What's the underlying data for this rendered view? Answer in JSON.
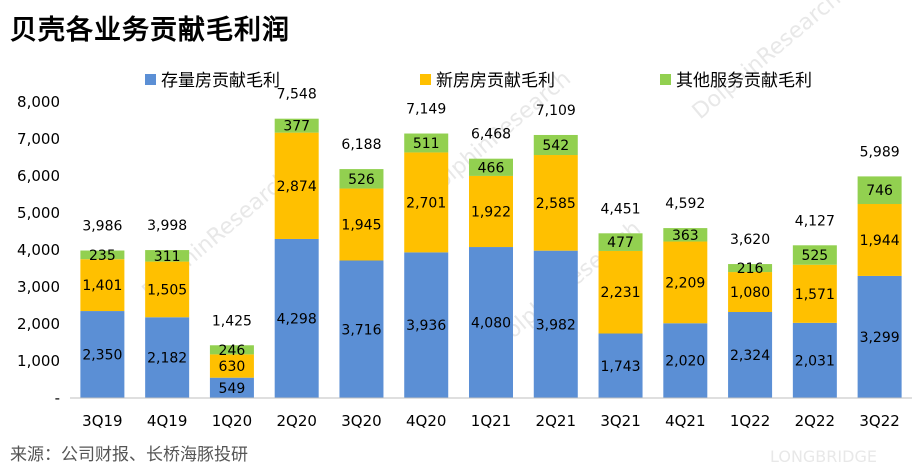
{
  "title": "贝壳各业务贡献毛利润",
  "source": "来源：公司财报、长桥海豚投研",
  "watermark": "DolphinResearch",
  "watermark_small": "LONGBRIDGE",
  "colors": {
    "existing": "#5b8fd5",
    "new": "#ffc000",
    "other": "#92d050"
  },
  "chart_data": {
    "type": "bar",
    "stacked": true,
    "categories": [
      "3Q19",
      "4Q19",
      "1Q20",
      "2Q20",
      "3Q20",
      "4Q20",
      "1Q21",
      "2Q21",
      "3Q21",
      "4Q21",
      "1Q22",
      "2Q22",
      "3Q22"
    ],
    "series": [
      {
        "name": "存量房贡献毛利",
        "values": [
          2350,
          2182,
          549,
          4298,
          3716,
          3936,
          4080,
          3982,
          1743,
          2020,
          2324,
          2031,
          3299
        ]
      },
      {
        "name": "新房房贡献毛利",
        "values": [
          1401,
          1505,
          630,
          2874,
          1945,
          2701,
          1922,
          2585,
          2231,
          2209,
          1080,
          1571,
          1944
        ]
      },
      {
        "name": "其他服务贡献毛利",
        "values": [
          235,
          311,
          246,
          377,
          526,
          511,
          466,
          542,
          477,
          363,
          216,
          525,
          746
        ]
      }
    ],
    "totals": [
      3986,
      3998,
      1425,
      7548,
      6188,
      7149,
      6468,
      7109,
      4451,
      4592,
      3620,
      4127,
      5989
    ],
    "y_ticks": [
      "-",
      "1,000",
      "2,000",
      "3,000",
      "4,000",
      "5,000",
      "6,000",
      "7,000",
      "8,000"
    ],
    "ylim": [
      0,
      8000
    ],
    "legend_position": "top",
    "grid": false
  }
}
